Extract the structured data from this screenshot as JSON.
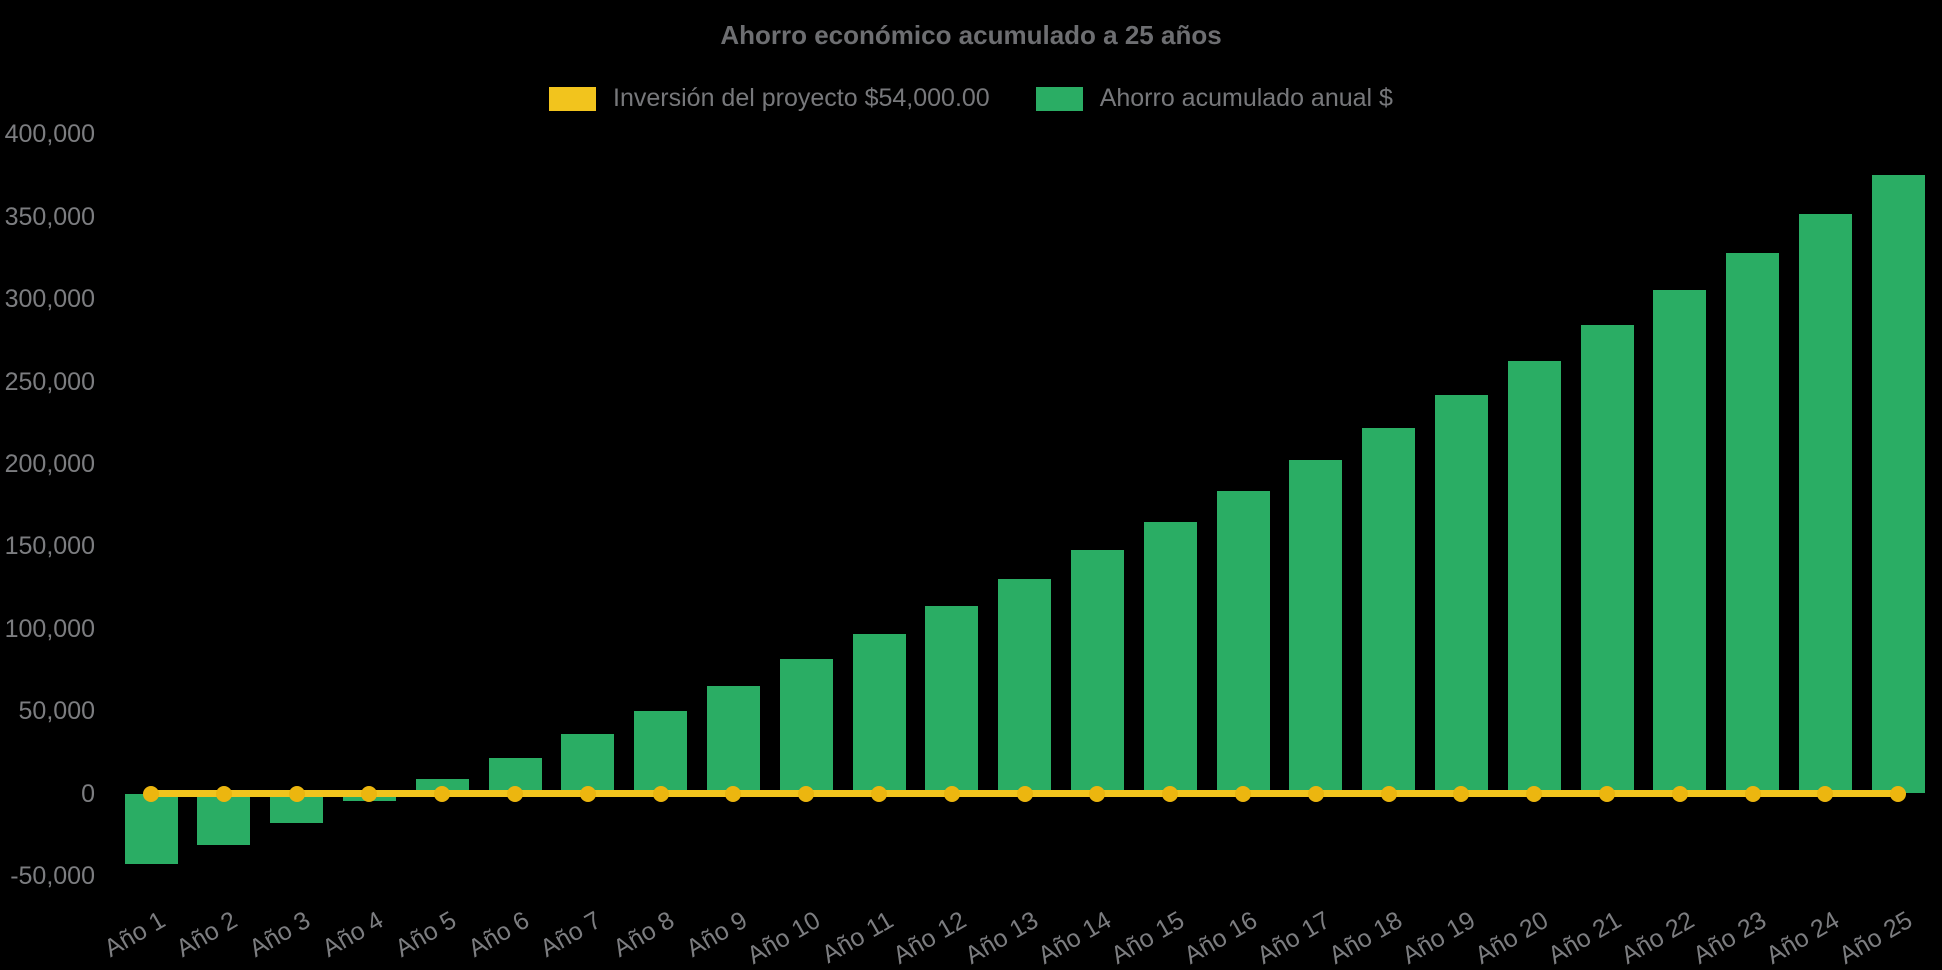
{
  "title": "Ahorro económico acumulado a 25 años",
  "legend": {
    "items": [
      {
        "label": "Inversión del proyecto $54,000.00",
        "color": "#F2C41D"
      },
      {
        "label": "Ahorro acumulado anual $",
        "color": "#2AAD64"
      }
    ]
  },
  "colors": {
    "background": "#000000",
    "title_text": "#6D6E71",
    "axis_text": "#7C7D80",
    "bar_green": "#2AAD64",
    "line_yellow": "#F2C41D",
    "point_yellow": "#ECB60F"
  },
  "chart_data": {
    "type": "bar",
    "title": "Ahorro económico acumulado a 25 años",
    "xlabel": "",
    "ylabel": "",
    "ylim": [
      -50000,
      400000
    ],
    "grid": false,
    "legend_position": "top-center",
    "categories": [
      "Año 1",
      "Año 2",
      "Año 3",
      "Año 4",
      "Año 5",
      "Año 6",
      "Año 7",
      "Año 8",
      "Año 9",
      "Año 10",
      "Año 11",
      "Año 12",
      "Año 13",
      "Año 14",
      "Año 15",
      "Año 16",
      "Año 17",
      "Año 18",
      "Año 19",
      "Año 20",
      "Año 21",
      "Año 22",
      "Año 23",
      "Año 24",
      "Año 25"
    ],
    "series": [
      {
        "name": "Ahorro acumulado anual $",
        "type": "bar",
        "color": "#2AAD64",
        "values": [
          -43000,
          -31500,
          -18000,
          -4500,
          8500,
          21500,
          36000,
          50000,
          65500,
          81500,
          97000,
          113500,
          130000,
          147500,
          165000,
          183500,
          202500,
          222000,
          242000,
          262500,
          284000,
          305500,
          328000,
          351500,
          375500
        ]
      },
      {
        "name": "Inversión del proyecto $54,000.00",
        "type": "line",
        "color": "#F2C41D",
        "point_color": "#ECB60F",
        "note": "horizontal break-even line drawn at y=0 with a marker at every category",
        "values": [
          0,
          0,
          0,
          0,
          0,
          0,
          0,
          0,
          0,
          0,
          0,
          0,
          0,
          0,
          0,
          0,
          0,
          0,
          0,
          0,
          0,
          0,
          0,
          0,
          0
        ]
      }
    ],
    "y_axis": {
      "tick_step": 50000,
      "ticks": [
        {
          "value": 400000,
          "label": "400,000"
        },
        {
          "value": 350000,
          "label": "350,000"
        },
        {
          "value": 300000,
          "label": "300,000"
        },
        {
          "value": 250000,
          "label": "250,000"
        },
        {
          "value": 200000,
          "label": "200,000"
        },
        {
          "value": 150000,
          "label": "150,000"
        },
        {
          "value": 100000,
          "label": "100,000"
        },
        {
          "value": 50000,
          "label": "50,000"
        },
        {
          "value": 0,
          "label": "0"
        },
        {
          "value": -50000,
          "label": "-50,000"
        }
      ]
    }
  }
}
